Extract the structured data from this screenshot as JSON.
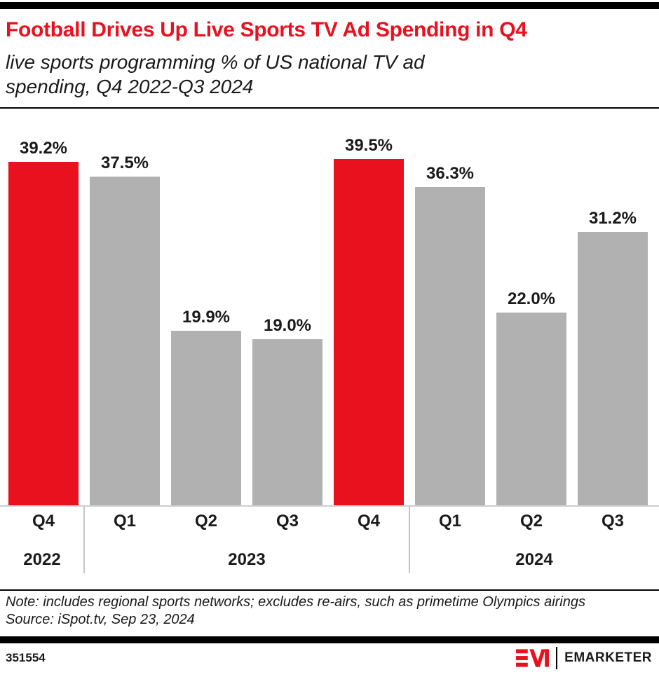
{
  "header": {
    "title": "Football Drives Up Live Sports TV Ad Spending in Q4",
    "subtitle_line1": "live sports programming % of US national TV ad",
    "subtitle_line2": "spending, Q4 2022-Q3 2024"
  },
  "chart_data": {
    "type": "bar",
    "title": "Football Drives Up Live Sports TV Ad Spending in Q4",
    "subtitle": "live sports programming % of US national TV ad spending, Q4 2022-Q3 2024",
    "unit": "%",
    "categories": [
      "Q4",
      "Q1",
      "Q2",
      "Q3",
      "Q4",
      "Q1",
      "Q2",
      "Q3"
    ],
    "x_full": [
      "Q4 2022",
      "Q1 2023",
      "Q2 2023",
      "Q3 2023",
      "Q4 2023",
      "Q1 2024",
      "Q2 2024",
      "Q3 2024"
    ],
    "values": [
      39.2,
      37.5,
      19.9,
      19.0,
      39.5,
      36.3,
      22.0,
      31.2
    ],
    "value_labels": [
      "39.2%",
      "37.5%",
      "19.9%",
      "19.0%",
      "39.5%",
      "36.3%",
      "22.0%",
      "31.2%"
    ],
    "highlighted_indices": [
      0,
      4
    ],
    "groups": [
      {
        "label": "2022",
        "count": 1
      },
      {
        "label": "2023",
        "count": 4
      },
      {
        "label": "2024",
        "count": 3
      }
    ],
    "colors": {
      "highlight": "#e8111d",
      "default": "#b1b1b1"
    },
    "ylim": [
      0,
      45
    ],
    "grid": false,
    "legend": "none",
    "orientation": "vertical"
  },
  "footnote": {
    "note": "Note: includes regional sports networks; excludes re-airs, such as primetime Olympics airings",
    "source": "Source: iSpot.tv, Sep 23, 2024"
  },
  "footer": {
    "chart_id": "351554",
    "brand": "EMARKETER"
  }
}
